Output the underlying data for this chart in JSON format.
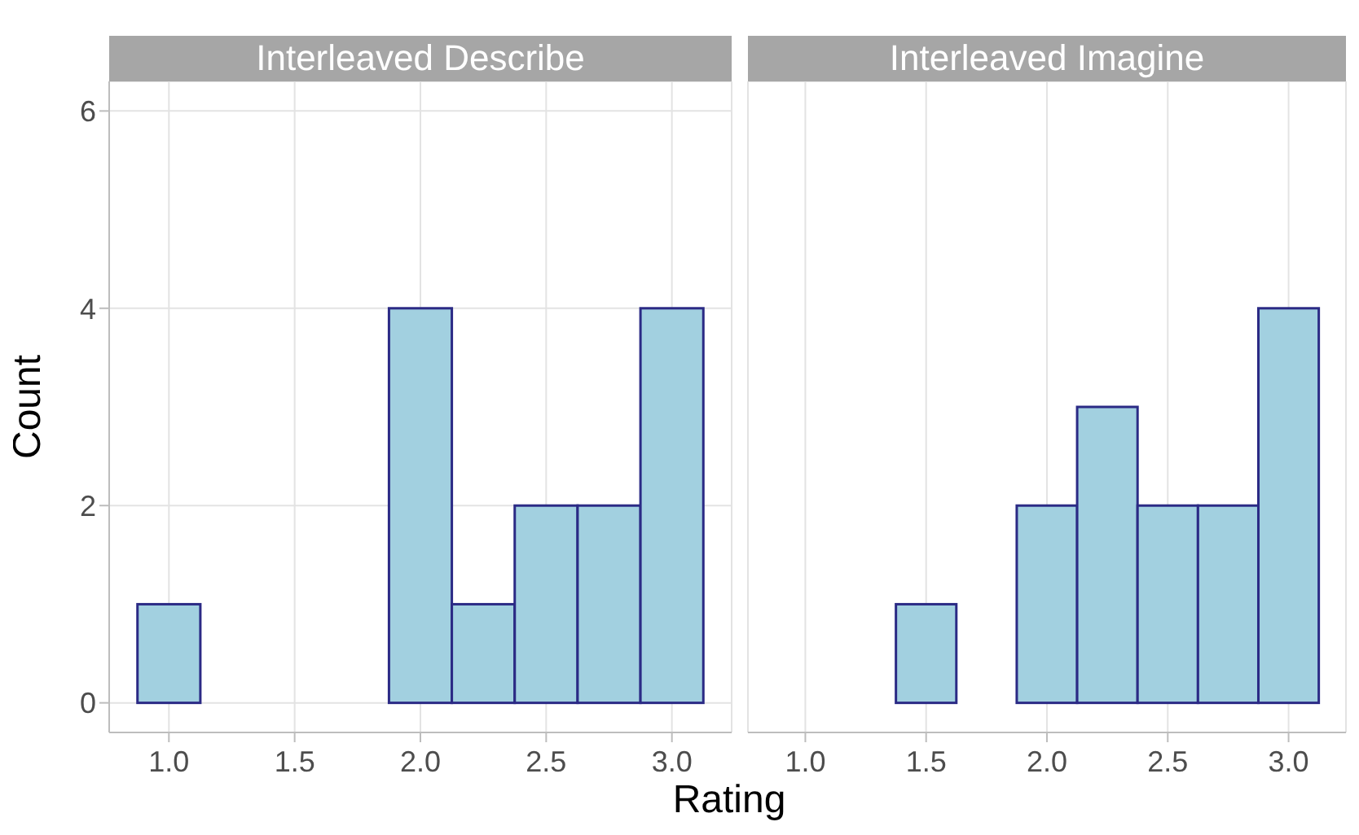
{
  "chart_data": [
    {
      "type": "histogram",
      "title": "Interleaved Describe",
      "xlabel": "Rating",
      "ylabel": "Count",
      "bins": [
        0.875,
        1.125,
        1.375,
        1.625,
        1.875,
        2.125,
        2.375,
        2.625,
        2.875,
        3.125
      ],
      "values": [
        1,
        0,
        0,
        0,
        4,
        1,
        2,
        2,
        4
      ],
      "color": "#a2d0e0",
      "xlim": [
        0.7625,
        3.2375
      ],
      "xticks": [
        {
          "value": 1,
          "label": "1.0"
        },
        {
          "value": 1.5,
          "label": "1.5"
        },
        {
          "value": 2,
          "label": "2.0"
        },
        {
          "value": 2.5,
          "label": "2.5"
        },
        {
          "value": 3,
          "label": "3.0"
        }
      ],
      "ylim": [
        -0.3,
        6.3
      ],
      "yticks": [
        0,
        2,
        4,
        6
      ],
      "grid": true
    },
    {
      "type": "histogram",
      "title": "Interleaved Imagine",
      "bins": [
        0.875,
        1.125,
        1.375,
        1.625,
        1.875,
        2.125,
        2.375,
        2.625,
        2.875,
        3.125
      ],
      "values": [
        0,
        0,
        1,
        0,
        2,
        3,
        2,
        2,
        4
      ],
      "color": "#a2d0e0",
      "xlim": [
        0.7625,
        3.2375
      ],
      "xticks": [
        {
          "value": 1,
          "label": "1.0"
        },
        {
          "value": 1.5,
          "label": "1.5"
        },
        {
          "value": 2,
          "label": "2.0"
        },
        {
          "value": 2.5,
          "label": "2.5"
        },
        {
          "value": 3,
          "label": "3.0"
        }
      ],
      "ylim": [
        -0.3,
        6.3
      ],
      "yticks": [
        0,
        2,
        4,
        6
      ],
      "grid": true,
      "tick_labels": "x"
    }
  ]
}
